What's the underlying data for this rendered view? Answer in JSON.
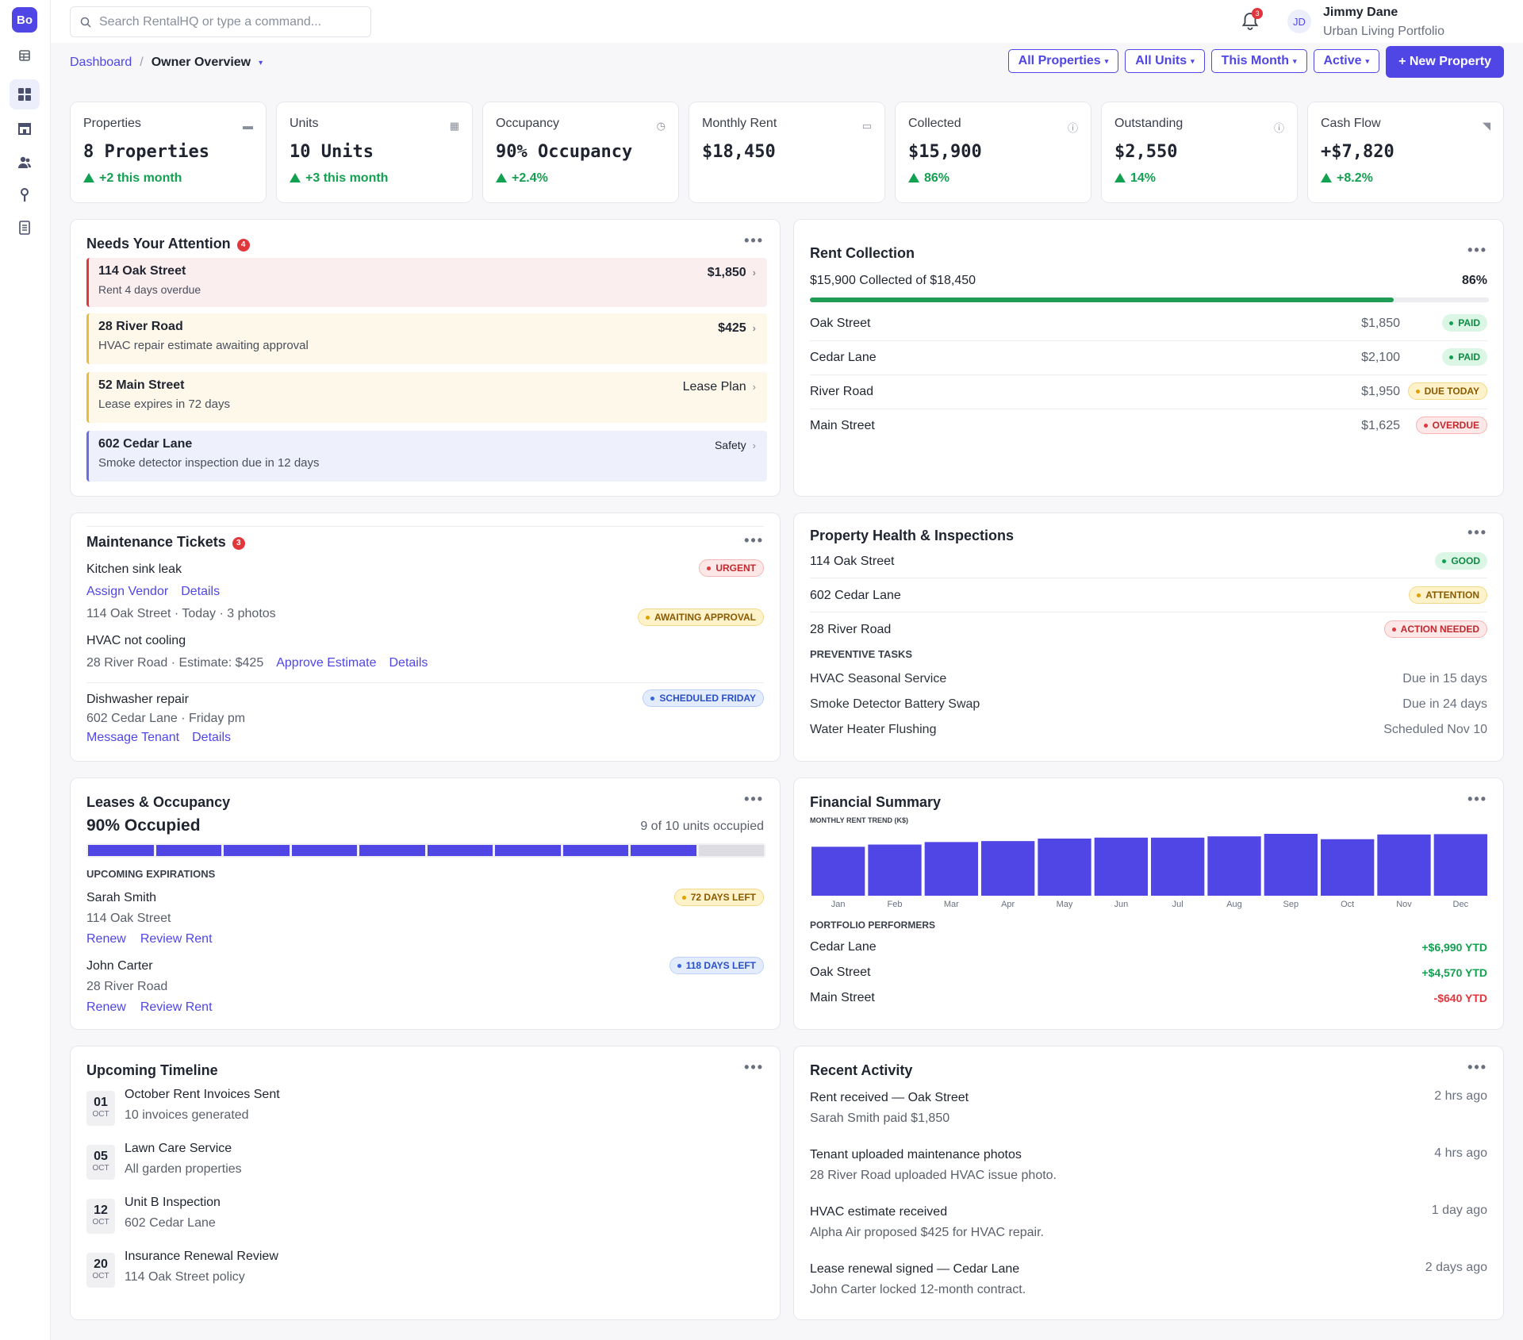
{
  "app": {
    "logo_text": "Bo",
    "search_placeholder": "Search RentalHQ or type a command...",
    "notifications_count": "3",
    "user_initials": "JD",
    "user_name": "Jimmy Dane",
    "user_org": "Urban Living Portfolio"
  },
  "breadcrumb": {
    "root": "Dashboard",
    "sep": "/",
    "current": "Owner Overview"
  },
  "filters": {
    "properties": "All Properties",
    "units": "All Units",
    "period": "This Month",
    "status": "Active",
    "new_property": "+ New Property"
  },
  "kpis": [
    {
      "label": "Properties",
      "value": "8 Properties",
      "delta": "+2 this month",
      "icon": "store-icon"
    },
    {
      "label": "Units",
      "value": "10 Units",
      "delta": "+3 this month",
      "icon": "grid-icon"
    },
    {
      "label": "Occupancy",
      "value": "90% Occupancy",
      "delta": "+2.4%",
      "icon": "gauge-icon"
    },
    {
      "label": "Monthly Rent",
      "value": "$18,450",
      "delta": "",
      "icon": "card-icon"
    },
    {
      "label": "Collected",
      "value": "$15,900",
      "delta": "86%",
      "icon": "info-icon"
    },
    {
      "label": "Outstanding",
      "value": "$2,550",
      "delta": "14%",
      "icon": "info-icon"
    },
    {
      "label": "Cash Flow",
      "value": "+$7,820",
      "delta": "+8.2%",
      "icon": "arrow-icon"
    }
  ],
  "attention": {
    "title": "Needs Your Attention",
    "count": "4",
    "items": [
      {
        "title": "114 Oak Street",
        "sub": "Rent 4 days overdue",
        "right": "$1,850"
      },
      {
        "title": "28 River Road",
        "sub": "HVAC repair estimate awaiting approval",
        "right": "$425"
      },
      {
        "title": "52 Main Street",
        "sub": "Lease expires in 72 days",
        "right": "Lease Plan"
      },
      {
        "title": "602 Cedar Lane",
        "sub": "Smoke detector inspection due in 12 days",
        "right": "Safety"
      }
    ]
  },
  "rent": {
    "title": "Rent Collection",
    "summary": "$15,900 Collected of $18,450",
    "percent": "86%",
    "progress": 0.86,
    "rows": [
      {
        "name": "Oak Street",
        "amount": "$1,850",
        "status": "PAID"
      },
      {
        "name": "Cedar Lane",
        "amount": "$2,100",
        "status": "PAID"
      },
      {
        "name": "River Road",
        "amount": "$1,950",
        "status": "DUE TODAY"
      },
      {
        "name": "Main Street",
        "amount": "$1,625",
        "status": "OVERDUE"
      }
    ]
  },
  "maint": {
    "title": "Maintenance Tickets",
    "count": "3",
    "t1_title": "Kitchen sink leak",
    "t1_badge": "URGENT",
    "t1_link1": "Assign Vendor",
    "t1_link2": "Details",
    "t1_meta": "114 Oak Street · Today · 3 photos",
    "t1_badge2": "AWAITING APPROVAL",
    "t2_title": "HVAC not cooling",
    "t2_meta": "28 River Road · Estimate: $425",
    "t2_link1": "Approve Estimate",
    "t2_link2": "Details",
    "t3_title": "Dishwasher repair",
    "t3_badge": "SCHEDULED FRIDAY",
    "t3_meta": "602 Cedar Lane · Friday pm",
    "t3_link1": "Message Tenant",
    "t3_link2": "Details"
  },
  "health": {
    "title": "Property Health & Inspections",
    "props": [
      {
        "name": "114 Oak Street",
        "status": "GOOD"
      },
      {
        "name": "602 Cedar Lane",
        "status": "ATTENTION"
      },
      {
        "name": "28 River Road",
        "status": "ACTION NEEDED"
      }
    ],
    "tasks_heading": "PREVENTIVE TASKS",
    "tasks": [
      {
        "name": "HVAC Seasonal Service",
        "when": "Due in 15 days"
      },
      {
        "name": "Smoke Detector Battery Swap",
        "when": "Due in 24 days"
      },
      {
        "name": "Water Heater Flushing",
        "when": "Scheduled Nov 10"
      }
    ]
  },
  "leases": {
    "title": "Leases & Occupancy",
    "occupied": "90% Occupied",
    "units_text": "9 of 10 units occupied",
    "occupied_units": 9,
    "total_units": 10,
    "heading": "UPCOMING EXPIRATIONS",
    "tenants": [
      {
        "name": "Sarah Smith",
        "address": "114 Oak Street",
        "badge": "72 DAYS LEFT",
        "link1": "Renew",
        "link2": "Review Rent"
      },
      {
        "name": "John Carter",
        "address": "28 River Road",
        "badge": "118 DAYS LEFT",
        "link1": "Renew",
        "link2": "Review Rent"
      }
    ]
  },
  "finance": {
    "title": "Financial Summary",
    "performers_heading": "PORTFOLIO PERFORMERS",
    "performers": [
      {
        "name": "Cedar Lane",
        "value": "+$6,990 YTD",
        "color": "#12a150"
      },
      {
        "name": "Oak Street",
        "value": "+$4,570 YTD",
        "color": "#12a150"
      },
      {
        "name": "Main Street",
        "value": "-$640 YTD",
        "color": "#e0363c"
      }
    ]
  },
  "chart_data": {
    "type": "bar",
    "title": "MONTHLY RENT TREND (K$)",
    "categories": [
      "Jan",
      "Feb",
      "Mar",
      "Apr",
      "May",
      "Jun",
      "Jul",
      "Aug",
      "Sep",
      "Oct",
      "Nov",
      "Dec"
    ],
    "values": [
      15.5,
      16.2,
      17.0,
      17.3,
      18.1,
      18.4,
      18.4,
      18.8,
      19.6,
      17.9,
      19.4,
      19.5
    ],
    "ylim": [
      0,
      19.6
    ],
    "color": "#4f46e5"
  },
  "timeline": {
    "title": "Upcoming Timeline",
    "events": [
      {
        "day": "01",
        "month": "OCT",
        "title": "October Rent Invoices Sent",
        "sub": "10 invoices generated"
      },
      {
        "day": "05",
        "month": "OCT",
        "title": "Lawn Care Service",
        "sub": "All garden properties"
      },
      {
        "day": "12",
        "month": "OCT",
        "title": "Unit B Inspection",
        "sub": "602 Cedar Lane"
      },
      {
        "day": "20",
        "month": "OCT",
        "title": "Insurance Renewal Review",
        "sub": "114 Oak Street policy"
      }
    ]
  },
  "activity": {
    "title": "Recent Activity",
    "items": [
      {
        "title": "Rent received — Oak Street",
        "sub": "Sarah Smith paid $1,850",
        "time": "2 hrs ago"
      },
      {
        "title": "Tenant uploaded maintenance photos",
        "sub": "28 River Road uploaded HVAC issue photo.",
        "time": "4 hrs ago"
      },
      {
        "title": "HVAC estimate received",
        "sub": "Alpha Air proposed $425 for HVAC repair.",
        "time": "1 day ago"
      },
      {
        "title": "Lease renewal signed — Cedar Lane",
        "sub": "John Carter locked 12-month contract.",
        "time": "2 days ago"
      }
    ]
  }
}
